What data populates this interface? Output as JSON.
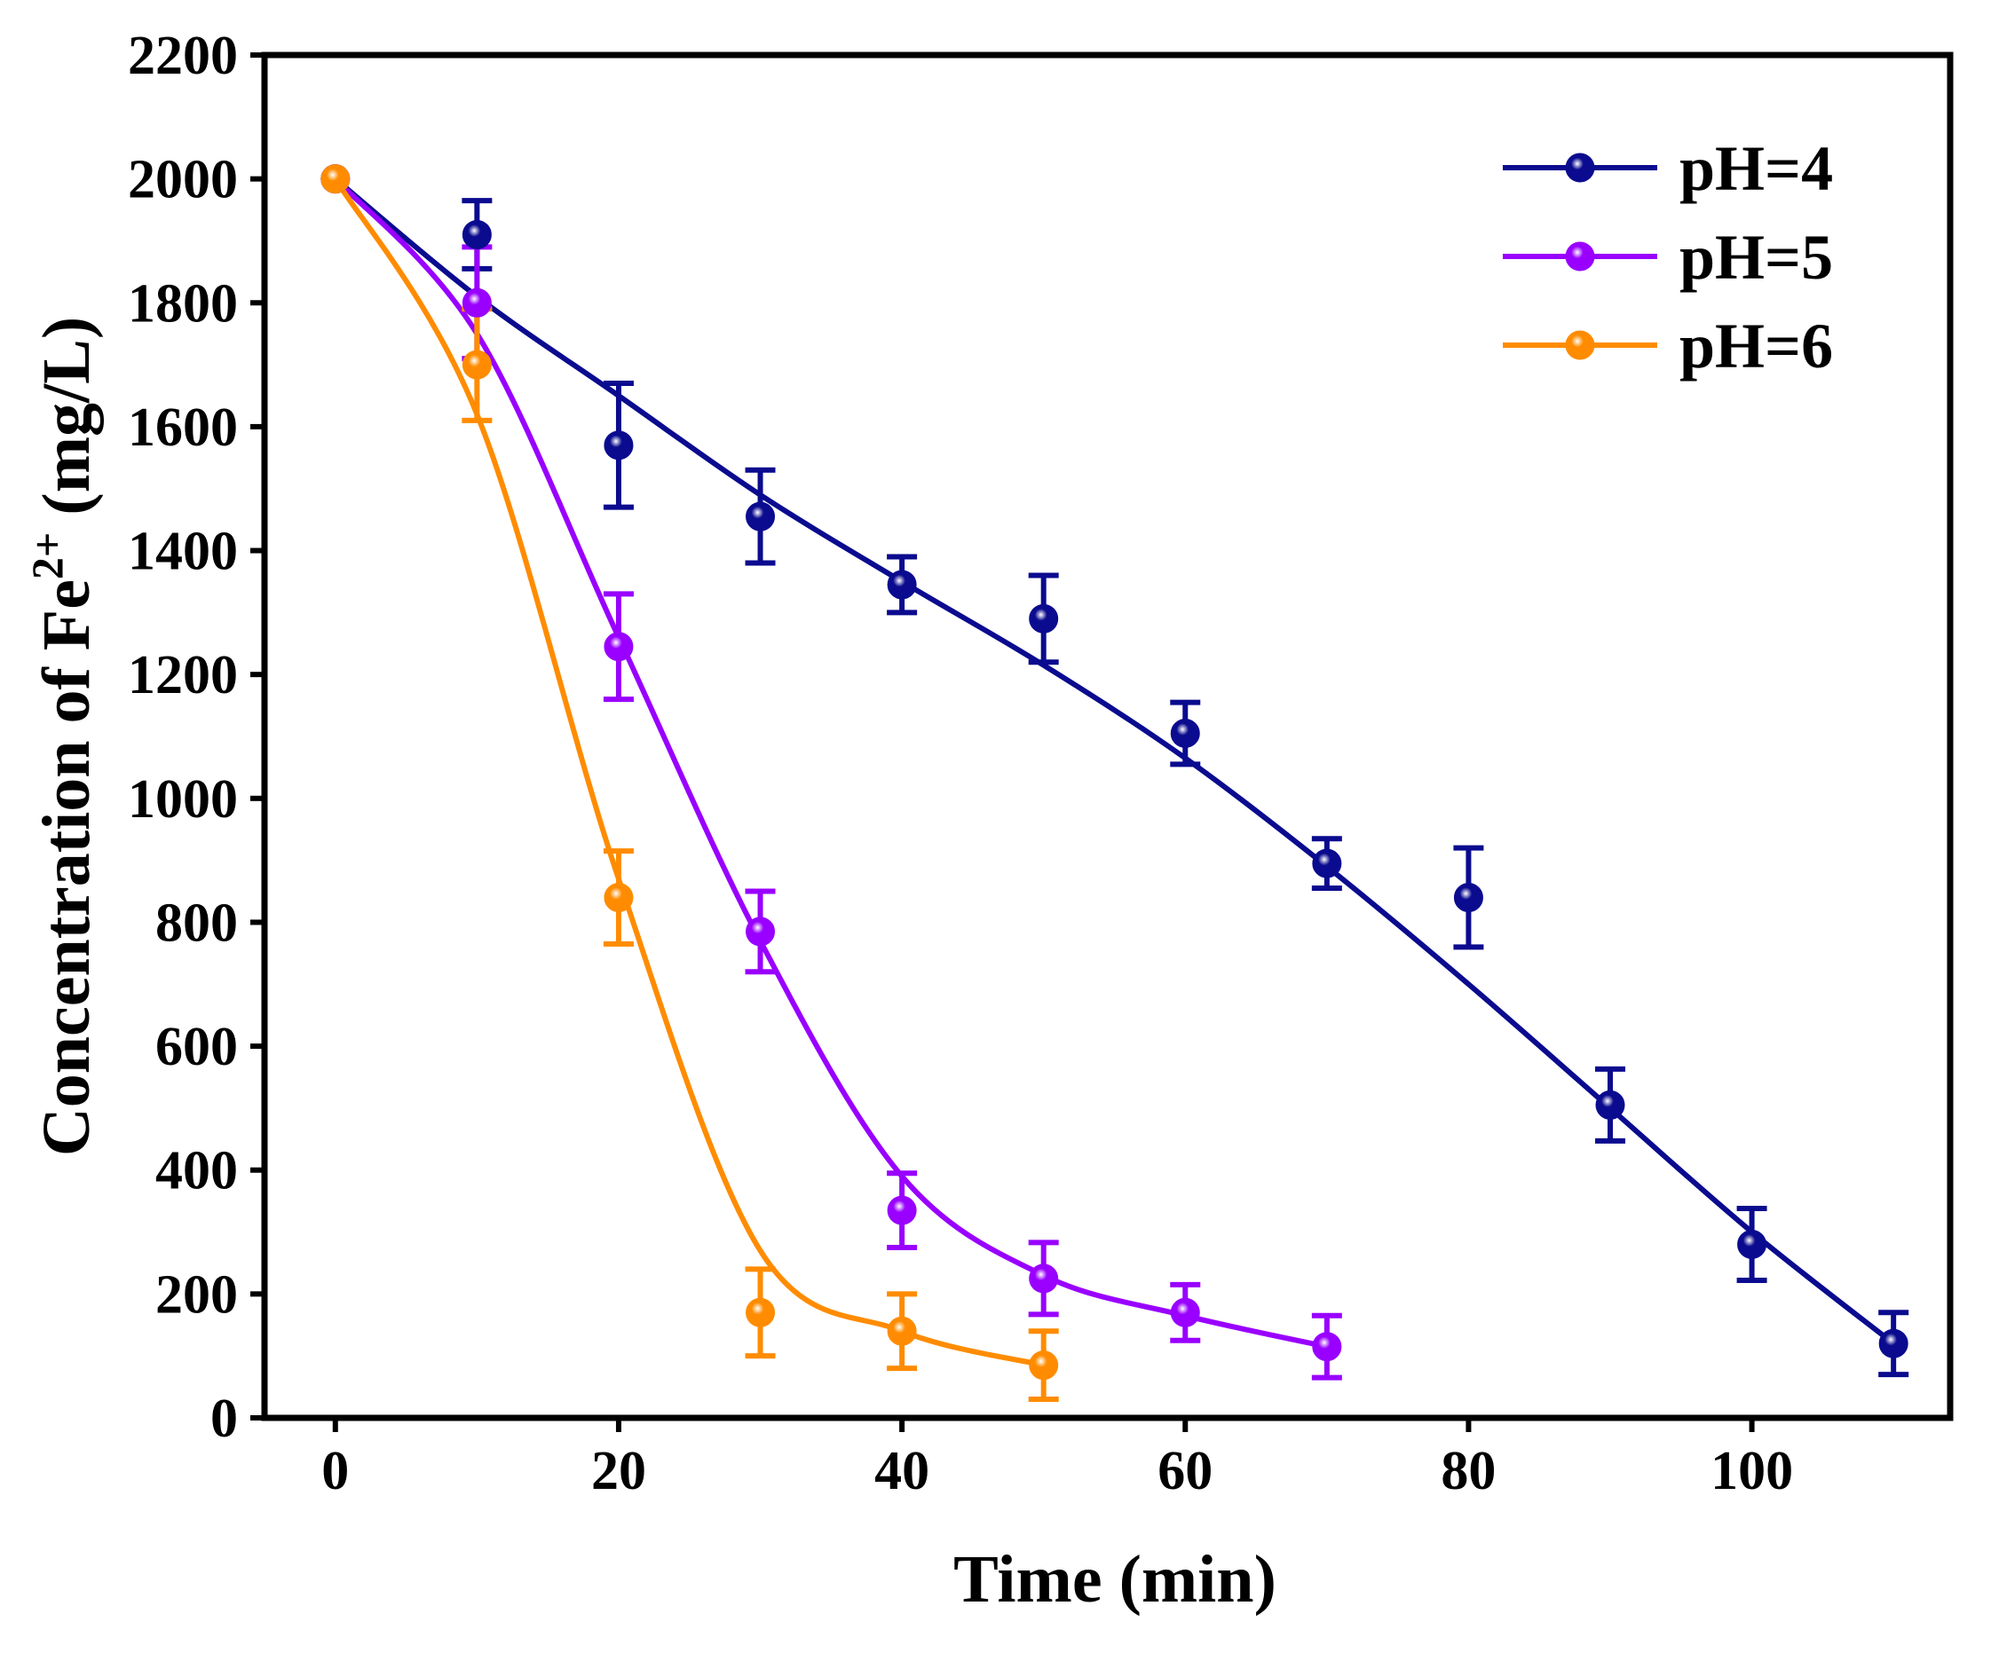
{
  "chart_data": {
    "type": "line",
    "title": "",
    "xlabel": "Time (min)",
    "ylabel_main": "Concentration of Fe",
    "ylabel_sup": "2+",
    "ylabel_unit": " (mg/L)",
    "xlim": [
      -5,
      114
    ],
    "ylim": [
      0,
      2200
    ],
    "xticks": [
      0,
      20,
      40,
      60,
      80,
      100
    ],
    "yticks": [
      0,
      200,
      400,
      600,
      800,
      1000,
      1200,
      1400,
      1600,
      1800,
      2000,
      2200
    ],
    "grid": false,
    "legend_position": "top-right",
    "series": [
      {
        "name": "pH=4",
        "color": "#0B0B8F",
        "x": [
          0,
          10,
          20,
          30,
          40,
          50,
          60,
          70,
          80,
          90,
          100,
          110
        ],
        "y": [
          2000,
          1910,
          1570,
          1455,
          1345,
          1290,
          1105,
          895,
          840,
          505,
          280,
          120
        ],
        "err": [
          0,
          55,
          100,
          75,
          45,
          70,
          50,
          40,
          80,
          58,
          58,
          50
        ],
        "fit_x": [
          0,
          10,
          20,
          30,
          40,
          50,
          60,
          70,
          80,
          90,
          100,
          110
        ],
        "fit_y": [
          2000,
          1810,
          1650,
          1490,
          1350,
          1215,
          1065,
          890,
          700,
          500,
          300,
          120
        ]
      },
      {
        "name": "pH=5",
        "color": "#9900FF",
        "x": [
          0,
          10,
          20,
          30,
          40,
          50,
          60,
          70
        ],
        "y": [
          2000,
          1800,
          1245,
          785,
          335,
          225,
          170,
          115
        ],
        "err": [
          0,
          90,
          85,
          65,
          60,
          58,
          45,
          50
        ],
        "fit_x": [
          0,
          10,
          20,
          30,
          40,
          50,
          60,
          70
        ],
        "fit_y": [
          2000,
          1750,
          1260,
          770,
          390,
          230,
          165,
          115
        ]
      },
      {
        "name": "pH=6",
        "color": "#FF8C00",
        "x": [
          0,
          10,
          20,
          30,
          40,
          50
        ],
        "y": [
          2000,
          1700,
          840,
          170,
          140,
          85
        ],
        "err": [
          0,
          90,
          75,
          70,
          60,
          55
        ],
        "fit_x": [
          0,
          10,
          20,
          30,
          40,
          50
        ],
        "fit_y": [
          2000,
          1620,
          870,
          270,
          140,
          85
        ]
      }
    ]
  }
}
